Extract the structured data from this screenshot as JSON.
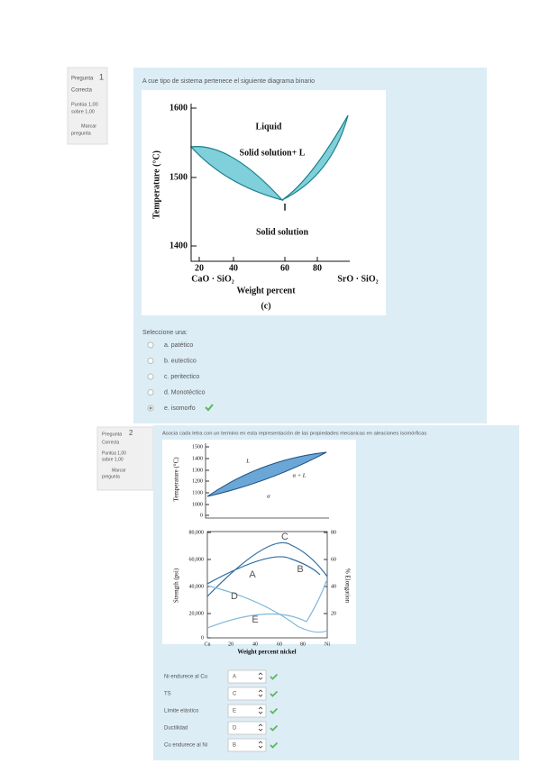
{
  "questions": [
    {
      "number_label": "Pregunta",
      "number": "1",
      "status": "Correcta",
      "score": [
        "Puntúa 1,00",
        "sobre 1,00"
      ],
      "flag": [
        "Marcar",
        "pregunta"
      ],
      "text": "A cue tipo de sistema pertenece el siguiente diagrama binario",
      "figure": {
        "y_ticks": [
          "1600",
          "1500",
          "1400"
        ],
        "x_ticks": [
          "20",
          "40",
          "60",
          "80"
        ],
        "y_label": "Temperature (°C)",
        "x_label": "Weight percent",
        "left_component": "CaO · SiO₂",
        "right_component": "SrO · SiO₂",
        "regions": [
          "Liquid",
          "Solid solution+ L",
          "l",
          "Solid solution"
        ],
        "caption": "(c)"
      },
      "prompt": "Seleccione una:",
      "options": [
        "a. patético",
        "b. eutectico",
        "c. peritectico",
        "d. Monotéctico",
        "e. isomorfo"
      ]
    },
    {
      "number_label": "Pregunta",
      "number": "2",
      "status": "Correcta",
      "score": [
        "Puntúa 1,00",
        "sobre 1,00"
      ],
      "flag": [
        "Marcar",
        "pregunta"
      ],
      "text": "Asocia cada letra con un  termino en esta representación de las propiedades mecanicas en aleaciones isomórficas",
      "figure": {
        "top": {
          "y_ticks": [
            "1500",
            "1400",
            "1300",
            "1200",
            "1100",
            "1000",
            "0"
          ],
          "y_label": "Temperature (°C)",
          "regions": [
            "L",
            "α + L",
            "α"
          ]
        },
        "bottom": {
          "y_ticks": [
            "80,000",
            "60,000",
            "40,000",
            "20,000",
            "0"
          ],
          "y2_ticks": [
            "80",
            "60",
            "40",
            "20"
          ],
          "x_ticks": [
            "Cu",
            "20",
            "40",
            "60",
            "80",
            "Ni"
          ],
          "y_label": "Strength (psi)",
          "y2_label": "% Elongation",
          "x_label": "Weight percent nickel",
          "letters": [
            "A",
            "B",
            "C",
            "D",
            "E"
          ]
        }
      },
      "matches": [
        {
          "label": "Ni endurece al Cu",
          "answer": "A"
        },
        {
          "label": "TS",
          "answer": "C"
        },
        {
          "label": "Límite elástico",
          "answer": "E"
        },
        {
          "label": "Ductilidad",
          "answer": "D"
        },
        {
          "label": "Cu endurece al Ni",
          "answer": "B"
        }
      ]
    }
  ]
}
